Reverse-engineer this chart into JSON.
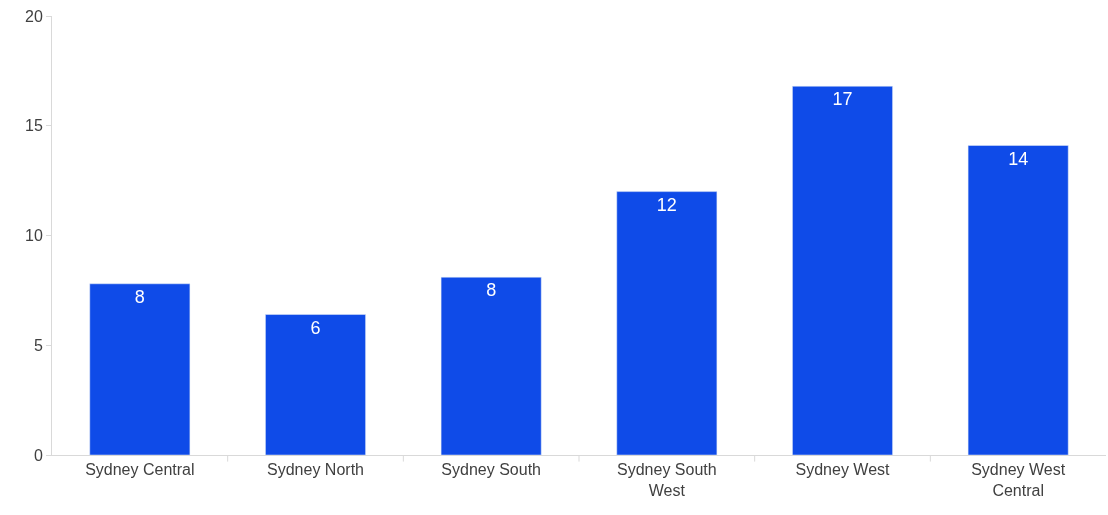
{
  "chart_data": {
    "type": "bar",
    "categories": [
      "Sydney Central",
      "Sydney North",
      "Sydney South",
      "Sydney South West",
      "Sydney West",
      "Sydney West Central"
    ],
    "values": [
      7.8,
      6.4,
      8.1,
      12.0,
      16.8,
      14.1
    ],
    "value_labels": [
      "8",
      "6",
      "8",
      "12",
      "17",
      "14"
    ],
    "color": "#0f4be8",
    "ylim": [
      0,
      20
    ],
    "yticks": [
      0,
      5,
      10,
      15,
      20
    ]
  }
}
